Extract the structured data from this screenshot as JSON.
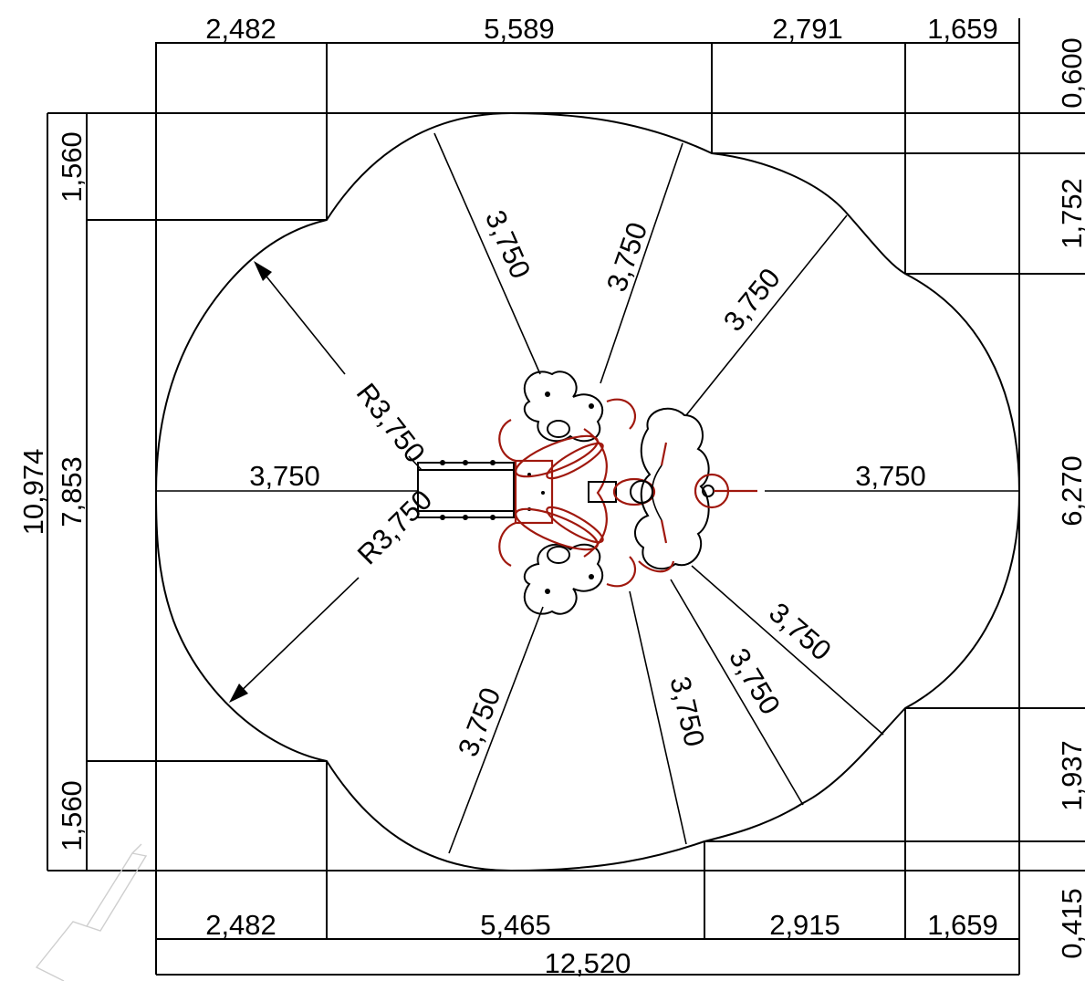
{
  "dimensions": {
    "top": [
      "2,482",
      "5,589",
      "2,791",
      "1,659"
    ],
    "bottom": [
      "2,482",
      "5,465",
      "2,915",
      "1,659"
    ],
    "total_width": "12,520",
    "left_total": "10,974",
    "left_inner": "7,853",
    "left_top": "1,560",
    "left_bottom": "1,560",
    "right": [
      "0,600",
      "1,752",
      "6,270",
      "1,937",
      "0,415"
    ]
  },
  "radii": {
    "radius_labels": [
      "R3,750",
      "R3,750"
    ],
    "spoke_labels": [
      "3,750",
      "3,750",
      "3,750",
      "3,750",
      "3,750",
      "3,750",
      "3,750",
      "3,750"
    ],
    "right_axis": "3,750"
  },
  "colors": {
    "line": "#000000",
    "equipment": "#a0180e"
  }
}
